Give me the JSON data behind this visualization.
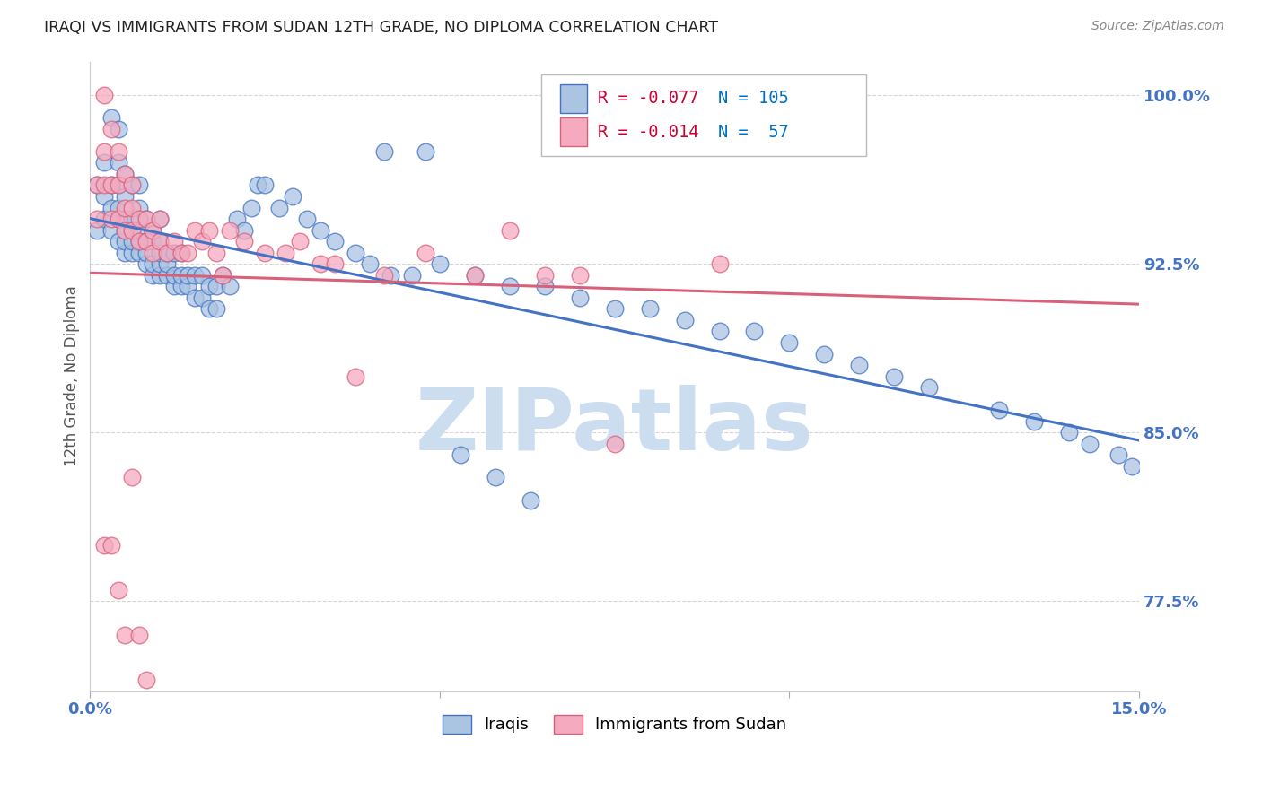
{
  "title": "IRAQI VS IMMIGRANTS FROM SUDAN 12TH GRADE, NO DIPLOMA CORRELATION CHART",
  "source": "Source: ZipAtlas.com",
  "ylabel": "12th Grade, No Diploma",
  "watermark": "ZIPatlas",
  "xlim": [
    0.0,
    0.15
  ],
  "ylim": [
    0.735,
    1.015
  ],
  "ytick_positions": [
    0.775,
    0.85,
    0.925,
    1.0
  ],
  "ytick_labels": [
    "77.5%",
    "85.0%",
    "92.5%",
    "100.0%"
  ],
  "xtick_positions": [
    0.0,
    0.05,
    0.1,
    0.15
  ],
  "xtick_labels": [
    "0.0%",
    "",
    "",
    "15.0%"
  ],
  "R_iraqi": -0.077,
  "N_iraqi": 105,
  "R_sudan": -0.014,
  "N_sudan": 57,
  "iraqi_color": "#aac4e2",
  "sudan_color": "#f5aabf",
  "line_iraqi_color": "#4472c4",
  "line_sudan_color": "#d9607a",
  "legend_R_color": "#cc0033",
  "legend_N_color": "#0070c0",
  "background_color": "#ffffff",
  "title_color": "#222222",
  "title_fontsize": 12.5,
  "axis_label_color": "#4472c4",
  "ylabel_color": "#555555",
  "watermark_color": "#ccddf0",
  "iraqi_x": [
    0.001,
    0.001,
    0.002,
    0.002,
    0.002,
    0.003,
    0.003,
    0.003,
    0.003,
    0.004,
    0.004,
    0.004,
    0.004,
    0.004,
    0.004,
    0.005,
    0.005,
    0.005,
    0.005,
    0.005,
    0.005,
    0.006,
    0.006,
    0.006,
    0.006,
    0.006,
    0.007,
    0.007,
    0.007,
    0.007,
    0.007,
    0.008,
    0.008,
    0.008,
    0.008,
    0.009,
    0.009,
    0.009,
    0.009,
    0.01,
    0.01,
    0.01,
    0.01,
    0.01,
    0.011,
    0.011,
    0.011,
    0.012,
    0.012,
    0.012,
    0.013,
    0.013,
    0.013,
    0.014,
    0.014,
    0.015,
    0.015,
    0.016,
    0.016,
    0.017,
    0.017,
    0.018,
    0.018,
    0.019,
    0.02,
    0.021,
    0.022,
    0.023,
    0.024,
    0.025,
    0.027,
    0.029,
    0.031,
    0.033,
    0.035,
    0.038,
    0.04,
    0.043,
    0.046,
    0.05,
    0.055,
    0.06,
    0.065,
    0.07,
    0.075,
    0.08,
    0.085,
    0.09,
    0.095,
    0.1,
    0.105,
    0.11,
    0.115,
    0.12,
    0.13,
    0.135,
    0.14,
    0.143,
    0.147,
    0.149,
    0.042,
    0.048,
    0.053,
    0.058,
    0.063
  ],
  "iraqi_y": [
    0.94,
    0.96,
    0.945,
    0.955,
    0.97,
    0.94,
    0.95,
    0.96,
    0.99,
    0.935,
    0.945,
    0.95,
    0.96,
    0.97,
    0.985,
    0.93,
    0.935,
    0.94,
    0.945,
    0.955,
    0.965,
    0.93,
    0.935,
    0.94,
    0.945,
    0.96,
    0.93,
    0.935,
    0.94,
    0.95,
    0.96,
    0.925,
    0.93,
    0.935,
    0.945,
    0.92,
    0.925,
    0.935,
    0.94,
    0.92,
    0.925,
    0.93,
    0.935,
    0.945,
    0.92,
    0.925,
    0.93,
    0.915,
    0.92,
    0.93,
    0.915,
    0.92,
    0.93,
    0.915,
    0.92,
    0.91,
    0.92,
    0.91,
    0.92,
    0.905,
    0.915,
    0.905,
    0.915,
    0.92,
    0.915,
    0.945,
    0.94,
    0.95,
    0.96,
    0.96,
    0.95,
    0.955,
    0.945,
    0.94,
    0.935,
    0.93,
    0.925,
    0.92,
    0.92,
    0.925,
    0.92,
    0.915,
    0.915,
    0.91,
    0.905,
    0.905,
    0.9,
    0.895,
    0.895,
    0.89,
    0.885,
    0.88,
    0.875,
    0.87,
    0.86,
    0.855,
    0.85,
    0.845,
    0.84,
    0.835,
    0.975,
    0.975,
    0.84,
    0.83,
    0.82
  ],
  "sudan_x": [
    0.001,
    0.001,
    0.002,
    0.002,
    0.002,
    0.003,
    0.003,
    0.003,
    0.004,
    0.004,
    0.004,
    0.005,
    0.005,
    0.005,
    0.006,
    0.006,
    0.006,
    0.007,
    0.007,
    0.008,
    0.008,
    0.009,
    0.009,
    0.01,
    0.01,
    0.011,
    0.012,
    0.013,
    0.014,
    0.015,
    0.016,
    0.017,
    0.018,
    0.019,
    0.02,
    0.022,
    0.025,
    0.028,
    0.03,
    0.033,
    0.035,
    0.038,
    0.042,
    0.048,
    0.055,
    0.06,
    0.065,
    0.07,
    0.075,
    0.09,
    0.002,
    0.003,
    0.004,
    0.005,
    0.006,
    0.007,
    0.008
  ],
  "sudan_y": [
    0.945,
    0.96,
    0.96,
    0.975,
    1.0,
    0.945,
    0.96,
    0.985,
    0.945,
    0.96,
    0.975,
    0.94,
    0.95,
    0.965,
    0.94,
    0.95,
    0.96,
    0.935,
    0.945,
    0.935,
    0.945,
    0.93,
    0.94,
    0.935,
    0.945,
    0.93,
    0.935,
    0.93,
    0.93,
    0.94,
    0.935,
    0.94,
    0.93,
    0.92,
    0.94,
    0.935,
    0.93,
    0.93,
    0.935,
    0.925,
    0.925,
    0.875,
    0.92,
    0.93,
    0.92,
    0.94,
    0.92,
    0.92,
    0.845,
    0.925,
    0.8,
    0.8,
    0.78,
    0.76,
    0.83,
    0.76,
    0.74
  ]
}
